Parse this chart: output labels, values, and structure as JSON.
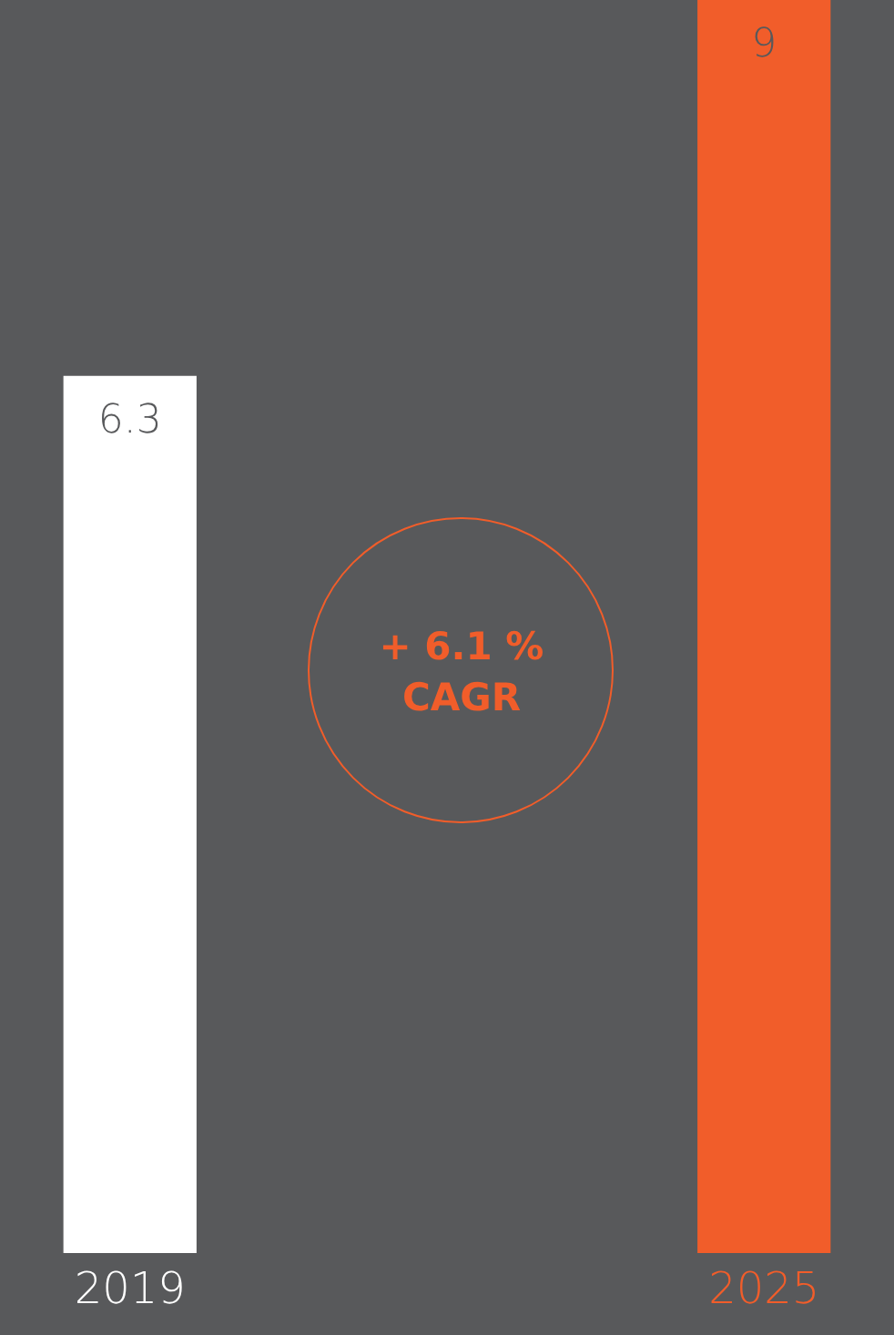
{
  "chart_data": {
    "type": "bar",
    "categories": [
      "2019",
      "2025"
    ],
    "values": [
      6.3,
      9
    ],
    "colors": [
      "#ffffff",
      "#f15d2a"
    ],
    "data_labels": true,
    "annotations": [
      "+ 6.1 %\nCAGR"
    ]
  }
}
